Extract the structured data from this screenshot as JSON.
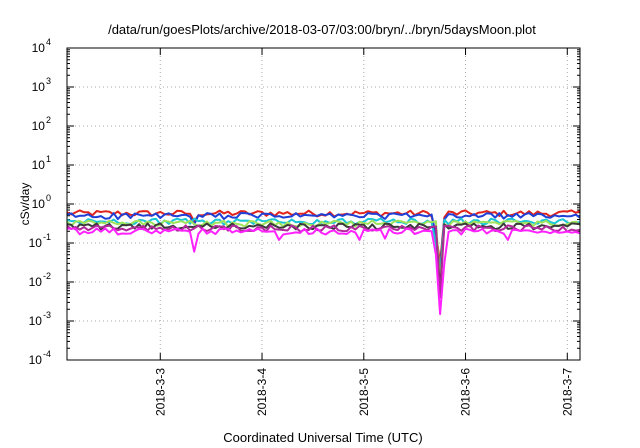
{
  "chart_data": {
    "type": "line",
    "title": "/data/run/goesPlots/archive/2018-03-07/03:00/bryn/../bryn/5daysMoon.plot",
    "xlabel": "Coordinated Universal Time (UTC)",
    "ylabel": "cSv/day",
    "yscale": "log",
    "ylim": [
      0.0001,
      10000
    ],
    "xlim": [
      "2018-03-02T02:00",
      "2018-03-07T03:00"
    ],
    "grid": true,
    "y_ticks": [
      {
        "base": "10",
        "exp": "-4",
        "value": 0.0001
      },
      {
        "base": "10",
        "exp": "-3",
        "value": 0.001
      },
      {
        "base": "10",
        "exp": "-2",
        "value": 0.01
      },
      {
        "base": "10",
        "exp": "-1",
        "value": 0.1
      },
      {
        "base": "10",
        "exp": "0",
        "value": 1
      },
      {
        "base": "10",
        "exp": "1",
        "value": 10
      },
      {
        "base": "10",
        "exp": "2",
        "value": 100
      },
      {
        "base": "10",
        "exp": "3",
        "value": 1000
      },
      {
        "base": "10",
        "exp": "4",
        "value": 10000
      }
    ],
    "x_ticks": [
      {
        "label": "2018-3-3",
        "value": "2018-03-03T00:00"
      },
      {
        "label": "2018-3-4",
        "value": "2018-03-04T00:00"
      },
      {
        "label": "2018-3-5",
        "value": "2018-03-05T00:00"
      },
      {
        "label": "2018-3-6",
        "value": "2018-03-06T00:00"
      },
      {
        "label": "2018-3-7",
        "value": "2018-03-07T00:00"
      }
    ],
    "series": [
      {
        "color": "#e0231d",
        "base": 0.58,
        "dips": [
          {
            "t": "2018-03-03T08:00",
            "v": 0.36
          },
          {
            "t": "2018-03-05T17:00",
            "v": 0.18
          },
          {
            "t": "2018-03-05T18:00",
            "v": 0.03
          },
          {
            "t": "2018-03-05T19:00",
            "v": 0.45
          }
        ]
      },
      {
        "color": "#1f3fd6",
        "base": 0.5,
        "dips": [
          {
            "t": "2018-03-03T08:00",
            "v": 0.3
          },
          {
            "t": "2018-03-05T17:00",
            "v": 0.15
          },
          {
            "t": "2018-03-05T18:00",
            "v": 0.02
          },
          {
            "t": "2018-03-05T19:00",
            "v": 0.4
          }
        ]
      },
      {
        "color": "#19c6d6",
        "base": 0.36,
        "dips": [
          {
            "t": "2018-03-05T17:00",
            "v": 0.1
          },
          {
            "t": "2018-03-05T18:00",
            "v": 0.012
          }
        ]
      },
      {
        "color": "#9fe35a",
        "base": 0.32,
        "dips": [
          {
            "t": "2018-03-05T18:00",
            "v": 0.01
          }
        ]
      },
      {
        "color": "#3a3a3a",
        "base": 0.27,
        "dips": [
          {
            "t": "2018-03-05T18:00",
            "v": 0.006
          }
        ]
      },
      {
        "color": "#b02a9a",
        "base": 0.24,
        "dips": [
          {
            "t": "2018-03-05T18:00",
            "v": 0.004
          }
        ]
      },
      {
        "color": "#ff22ff",
        "base": 0.2,
        "dips": [
          {
            "t": "2018-03-03T08:00",
            "v": 0.06
          },
          {
            "t": "2018-03-04T04:00",
            "v": 0.12
          },
          {
            "t": "2018-03-04T23:00",
            "v": 0.12
          },
          {
            "t": "2018-03-05T05:00",
            "v": 0.13
          },
          {
            "t": "2018-03-05T16:00",
            "v": 0.2
          },
          {
            "t": "2018-03-05T17:00",
            "v": 0.05
          },
          {
            "t": "2018-03-05T18:00",
            "v": 0.0015
          },
          {
            "t": "2018-03-05T19:00",
            "v": 0.03
          },
          {
            "t": "2018-03-06T10:00",
            "v": 0.12
          }
        ]
      }
    ]
  }
}
